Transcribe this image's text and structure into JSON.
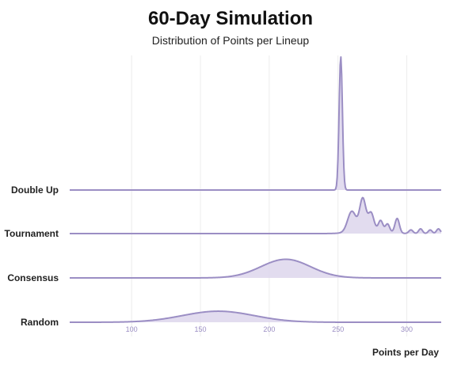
{
  "chart_data": {
    "type": "area",
    "title": "60-Day Simulation",
    "subtitle": "Distribution of Points per Lineup",
    "xlabel": "Points per Day",
    "ylabel": "",
    "xlim": [
      55,
      325
    ],
    "x_ticks": [
      100,
      150,
      200,
      250,
      300
    ],
    "grid": true,
    "legend": "none",
    "color": "#9b8ec4",
    "fill": "#ddd6ec",
    "series": [
      {
        "name": "Double Up",
        "peak_height": 1.0,
        "components": [
          [
            252,
            1.2,
            1.0
          ]
        ]
      },
      {
        "name": "Tournament",
        "peak_height": 0.27,
        "components": [
          [
            260,
            3.0,
            0.55
          ],
          [
            268,
            2.2,
            0.85
          ],
          [
            274,
            2.0,
            0.45
          ],
          [
            281,
            1.6,
            0.28
          ],
          [
            286,
            1.5,
            0.22
          ],
          [
            293,
            1.6,
            0.4
          ],
          [
            303,
            1.5,
            0.1
          ],
          [
            310,
            1.4,
            0.13
          ],
          [
            317,
            1.4,
            0.1
          ],
          [
            323,
            1.4,
            0.13
          ],
          [
            272,
            10,
            0.12
          ]
        ]
      },
      {
        "name": "Consensus",
        "peak_height": 0.14,
        "components": [
          [
            212,
            18,
            1.0
          ]
        ]
      },
      {
        "name": "Random",
        "peak_height": 0.083,
        "components": [
          [
            163,
            26,
            1.0
          ]
        ]
      }
    ]
  }
}
